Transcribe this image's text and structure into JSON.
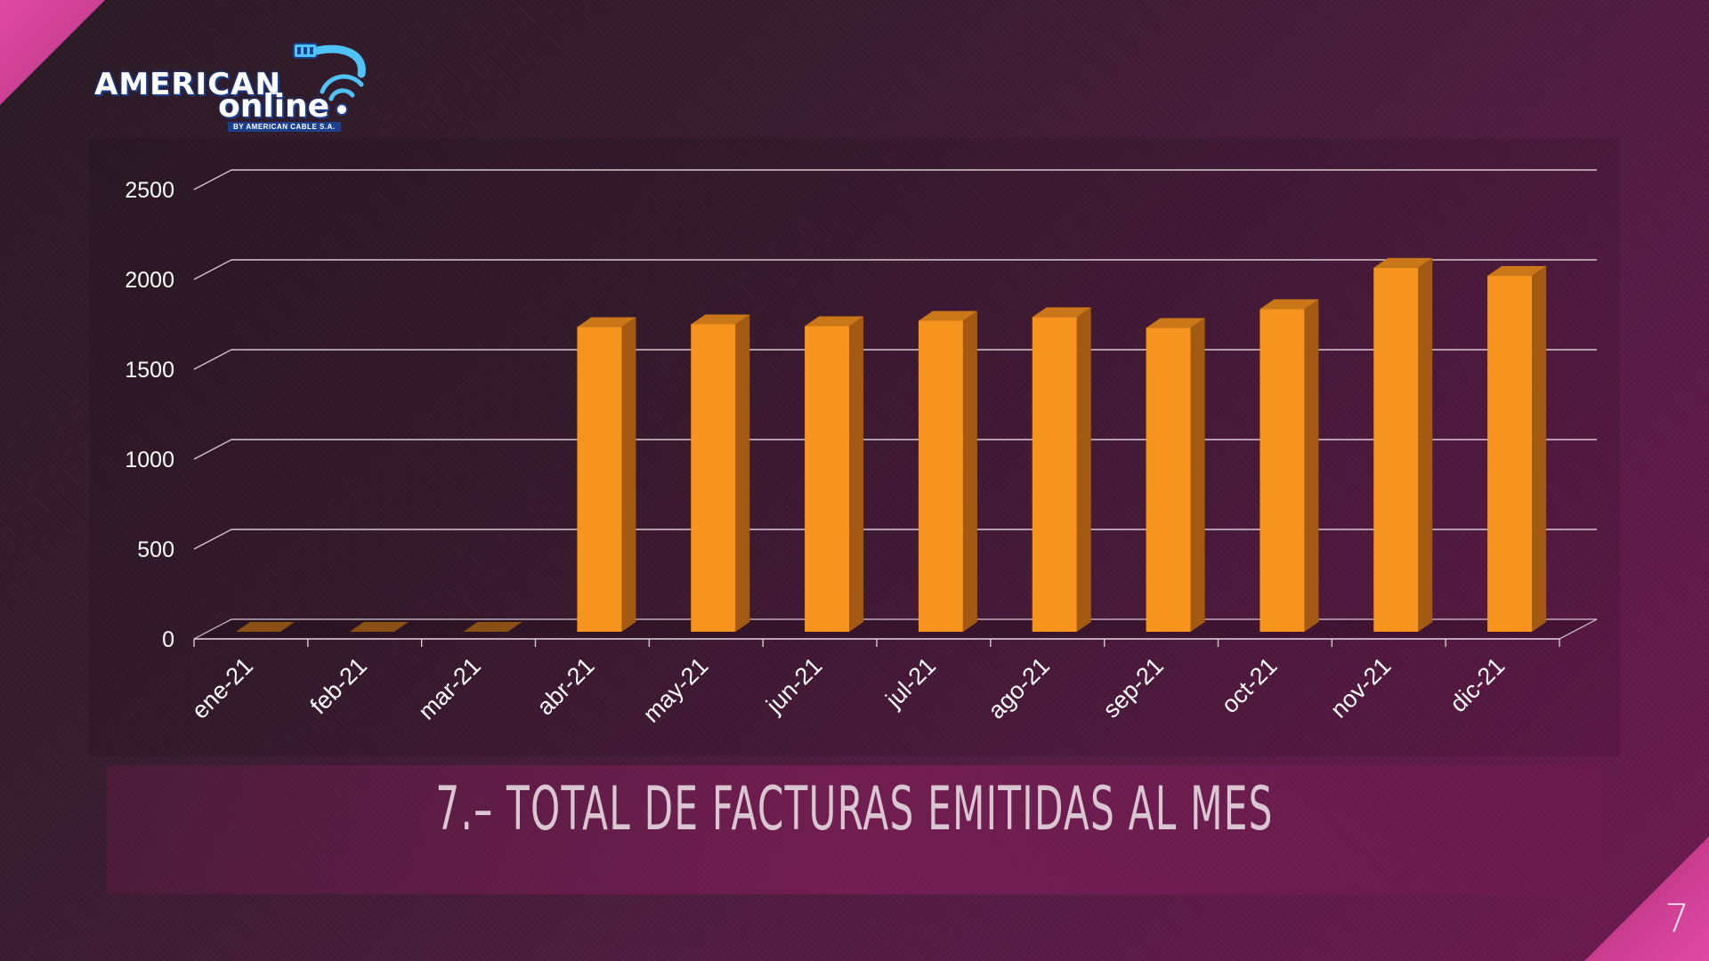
{
  "slide": {
    "title": "7.– TOTAL DE FACTURAS EMITIDAS AL MES",
    "page_number": "7"
  },
  "logo": {
    "line1": "AMERICAN",
    "line2": "online",
    "tagline": "BY AMERICAN CABLE S.A."
  },
  "colors": {
    "bar_front": "#f7941e",
    "bar_side": "#a45a12",
    "bar_top": "#c97718",
    "grid": "#d8c8d2",
    "accent": "#e04aa6"
  },
  "chart_data": {
    "type": "bar",
    "title": "",
    "xlabel": "",
    "ylabel": "",
    "categories": [
      "ene-21",
      "feb-21",
      "mar-21",
      "abr-21",
      "may-21",
      "jun-21",
      "jul-21",
      "ago-21",
      "sep-21",
      "oct-21",
      "nov-21",
      "dic-21"
    ],
    "values": [
      0,
      0,
      0,
      1735,
      1750,
      1740,
      1770,
      1790,
      1730,
      1835,
      2065,
      2020
    ],
    "ylim": [
      0,
      2500
    ],
    "yticks": [
      "0",
      "500",
      "1000",
      "1500",
      "2000",
      "2500"
    ],
    "grid": true,
    "legend": "none",
    "style": "3d-columns"
  }
}
